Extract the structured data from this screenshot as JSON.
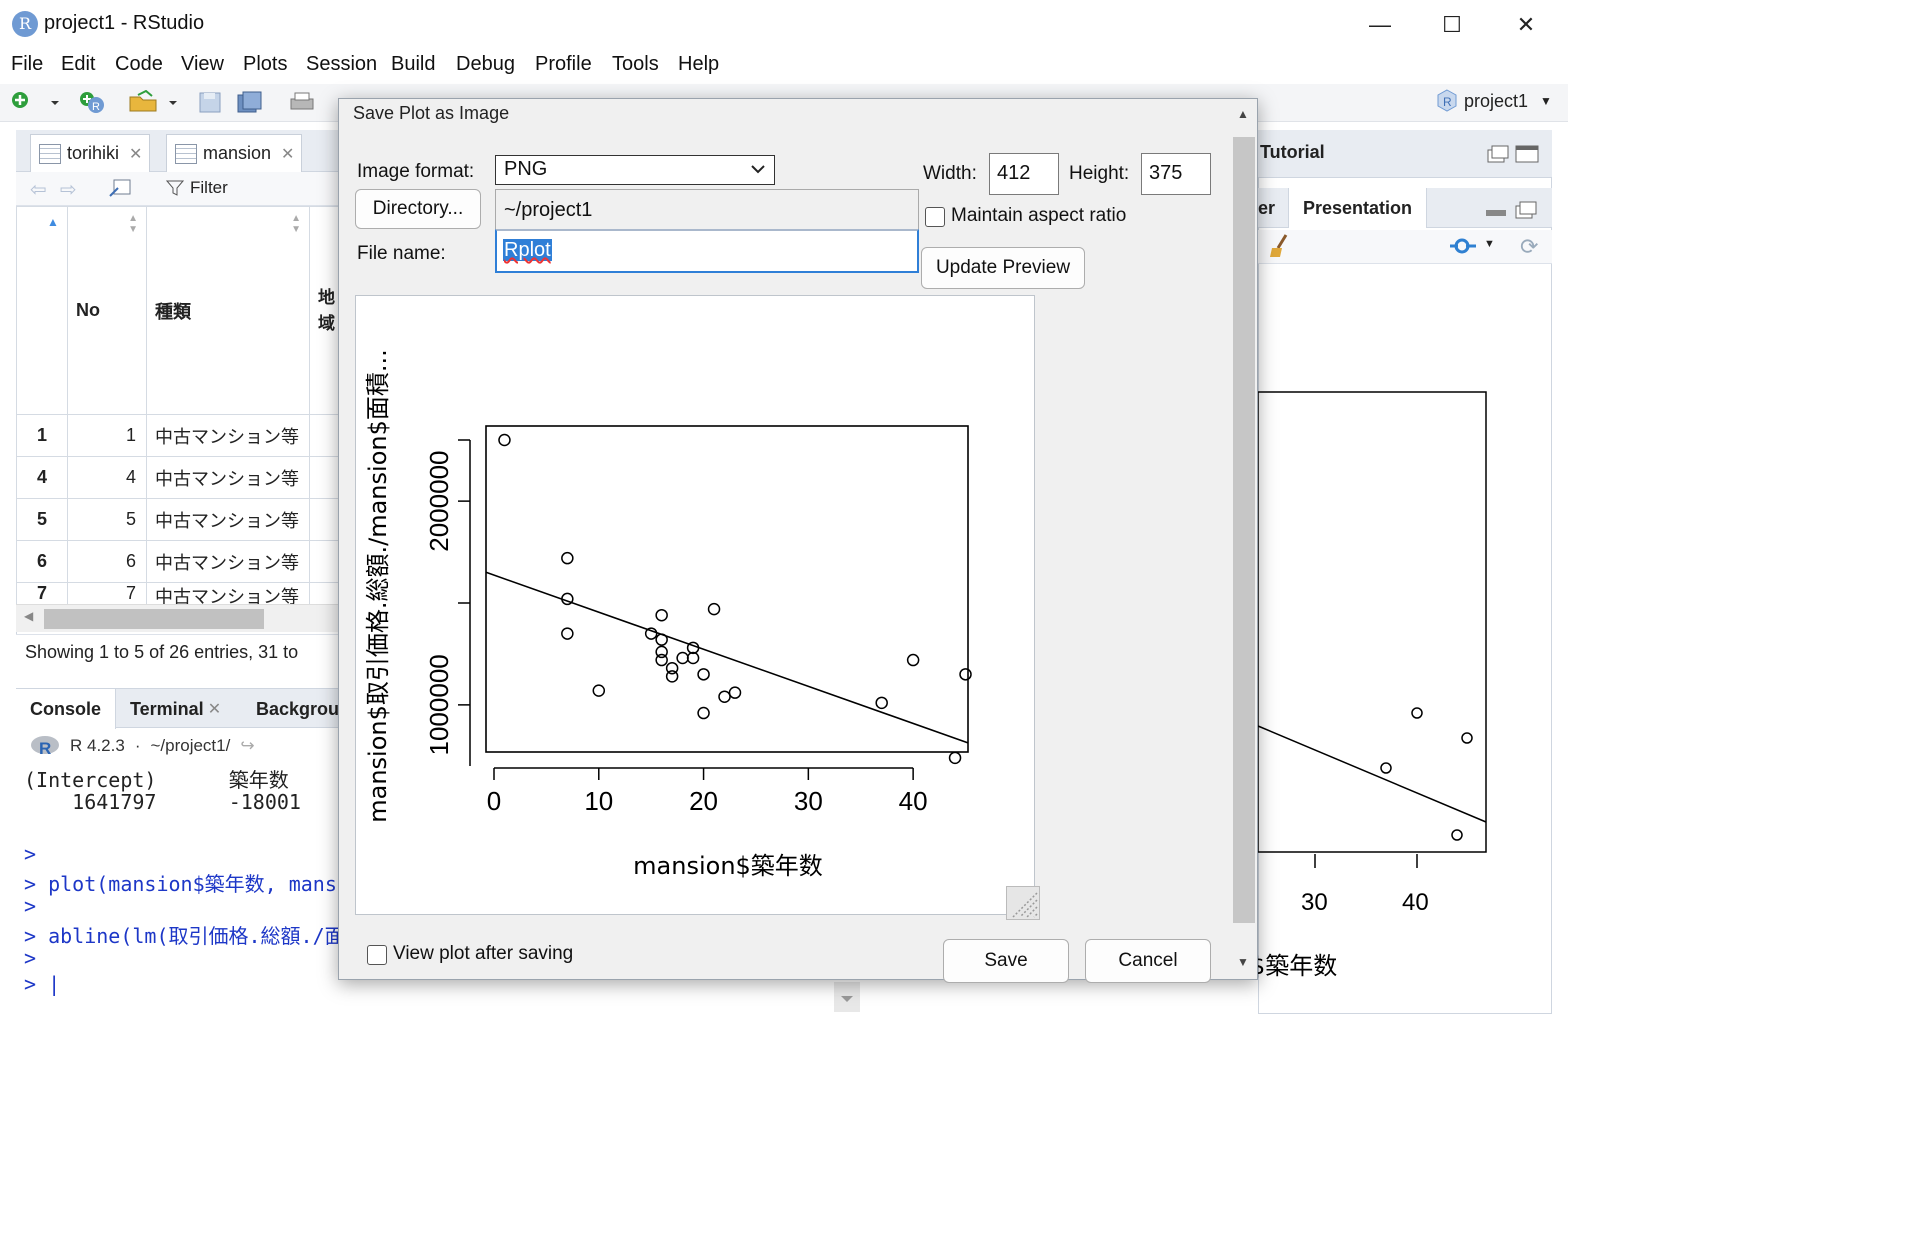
{
  "window": {
    "title": "project1 - RStudio",
    "controls": {
      "minimize": "—",
      "maximize": "☐",
      "close": "✕"
    }
  },
  "menu": [
    "File",
    "Edit",
    "Code",
    "View",
    "Plots",
    "Session",
    "Build",
    "Debug",
    "Profile",
    "Tools",
    "Help"
  ],
  "toolbar": {
    "project_label": "project1"
  },
  "data_viewer": {
    "tabs": [
      {
        "label": "torihiki"
      },
      {
        "label": "mansion"
      }
    ],
    "filter_label": "Filter",
    "columns": [
      "",
      "No",
      "種類",
      "地域"
    ],
    "rows": [
      {
        "idx": "1",
        "no": "1",
        "kind": "中古マンション等"
      },
      {
        "idx": "4",
        "no": "4",
        "kind": "中古マンション等"
      },
      {
        "idx": "5",
        "no": "5",
        "kind": "中古マンション等"
      },
      {
        "idx": "6",
        "no": "6",
        "kind": "中古マンション等"
      },
      {
        "idx": "7",
        "no": "7",
        "kind": "中古マンション等"
      }
    ],
    "status": "Showing 1 to 5 of 26 entries, 31 to"
  },
  "console": {
    "tabs": [
      "Console",
      "Terminal",
      "Backgrou"
    ],
    "version": "R 4.2.3",
    "path": "~/project1/",
    "lines": [
      {
        "text": "(Intercept)      築年数",
        "color": "black"
      },
      {
        "text": "    1641797      -18001",
        "color": "black"
      },
      {
        "text": "",
        "color": "black"
      },
      {
        "text": ">",
        "color": "blue"
      },
      {
        "text": "> plot(mansion$築年数, mansio",
        "color": "blue"
      },
      {
        "text": ">",
        "color": "blue"
      },
      {
        "text": "> abline(lm(取引価格.総額./面",
        "color": "blue"
      },
      {
        "text": ">",
        "color": "blue"
      },
      {
        "text": "> |",
        "color": "blue"
      }
    ]
  },
  "right_pane": {
    "tabs_top": [
      "Tutorial"
    ],
    "tabs_second": [
      "er",
      "Presentation"
    ],
    "x_ticks": [
      "30",
      "40"
    ],
    "xlabel_fragment": "$築年数"
  },
  "dialog": {
    "title": "Save Plot as Image",
    "image_format_label": "Image format:",
    "image_format_value": "PNG",
    "width_label": "Width:",
    "width_value": "412",
    "height_label": "Height:",
    "height_value": "375",
    "directory_button": "Directory...",
    "directory_value": "~/project1",
    "maintain_aspect_label": "Maintain aspect ratio",
    "file_name_label": "File name:",
    "file_name_value": "Rplot",
    "update_preview_button": "Update Preview",
    "view_after_label": "View plot after saving",
    "save_button": "Save",
    "cancel_button": "Cancel"
  },
  "chart_data": {
    "type": "scatter",
    "xlabel": "mansion$築年数",
    "ylabel": "mansion$取引価格.総額./mansion$面積...",
    "xlim": [
      0,
      46
    ],
    "ylim": [
      700000,
      2300000
    ],
    "x_ticks": [
      0,
      10,
      20,
      30,
      40
    ],
    "y_ticks": [
      1000000,
      2000000
    ],
    "y_tick_labels": [
      "1000000",
      "2000000"
    ],
    "points": [
      {
        "x": 1,
        "y": 2300000
      },
      {
        "x": 7,
        "y": 1720000
      },
      {
        "x": 7,
        "y": 1520000
      },
      {
        "x": 7,
        "y": 1350000
      },
      {
        "x": 10,
        "y": 1070000
      },
      {
        "x": 15,
        "y": 1350000
      },
      {
        "x": 16,
        "y": 1440000
      },
      {
        "x": 16,
        "y": 1320000
      },
      {
        "x": 16,
        "y": 1260000
      },
      {
        "x": 16,
        "y": 1220000
      },
      {
        "x": 17,
        "y": 1180000
      },
      {
        "x": 17,
        "y": 1140000
      },
      {
        "x": 18,
        "y": 1230000
      },
      {
        "x": 19,
        "y": 1280000
      },
      {
        "x": 19,
        "y": 1230000
      },
      {
        "x": 20,
        "y": 1150000
      },
      {
        "x": 20,
        "y": 960000
      },
      {
        "x": 21,
        "y": 1470000
      },
      {
        "x": 22,
        "y": 1040000
      },
      {
        "x": 23,
        "y": 1060000
      },
      {
        "x": 37,
        "y": 1010000
      },
      {
        "x": 40,
        "y": 1220000
      },
      {
        "x": 44,
        "y": 740000
      },
      {
        "x": 45,
        "y": 1150000
      }
    ],
    "regression": {
      "intercept": 1641797,
      "slope": -18001
    }
  }
}
